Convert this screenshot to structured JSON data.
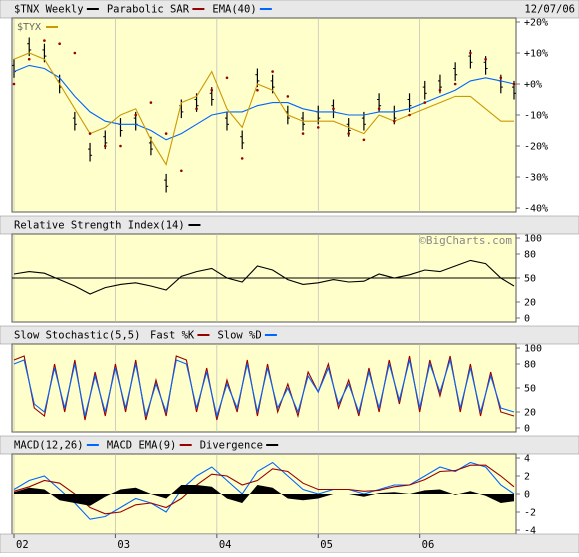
{
  "colors": {
    "panel_bg": "#ffffcc",
    "header_bg": "#e8e8e8",
    "price": "#000000",
    "sar": "#990000",
    "ema": "#0066ff",
    "tyx": "#cc9900",
    "fast_k": "#990000",
    "slow_d": "#0066ff",
    "macd": "#0066ff",
    "macd_ema": "#990000",
    "divergence": "#000000"
  },
  "chart_data": [
    {
      "type": "line",
      "id": "price",
      "legend": [
        "$TNX Weekly",
        "Parabolic SAR",
        "EMA(40)"
      ],
      "date_label": "12/07/06",
      "overlay_label": "$TYX",
      "watermark": "",
      "ylim": [
        -40,
        20
      ],
      "yticks": [
        "+20%",
        "+10%",
        "+0%",
        "-10%",
        "-20%",
        "-30%",
        "-40%"
      ],
      "ytick_values": [
        20,
        10,
        0,
        -10,
        -20,
        -30,
        -40
      ],
      "x": [
        2002.0,
        2002.15,
        2002.3,
        2002.45,
        2002.6,
        2002.75,
        2002.9,
        2003.05,
        2003.2,
        2003.35,
        2003.5,
        2003.65,
        2003.8,
        2003.95,
        2004.1,
        2004.25,
        2004.4,
        2004.55,
        2004.7,
        2004.85,
        2005.0,
        2005.15,
        2005.3,
        2005.45,
        2005.6,
        2005.75,
        2005.9,
        2006.05,
        2006.2,
        2006.35,
        2006.5,
        2006.65,
        2006.8,
        2006.93
      ],
      "series": [
        {
          "name": "$TNX Weekly",
          "values": [
            5,
            12,
            10,
            0,
            -12,
            -22,
            -18,
            -14,
            -12,
            -20,
            -32,
            -8,
            -6,
            -4,
            -12,
            -18,
            2,
            0,
            -10,
            -12,
            -10,
            -8,
            -14,
            -12,
            -6,
            -10,
            -6,
            -2,
            0,
            4,
            8,
            6,
            0,
            -2
          ]
        },
        {
          "name": "EMA(40)",
          "values": [
            4,
            6,
            5,
            2,
            -4,
            -9,
            -12,
            -13,
            -13,
            -15,
            -18,
            -16,
            -13,
            -10,
            -9,
            -9,
            -7,
            -6,
            -6,
            -8,
            -9,
            -9,
            -10,
            -10,
            -9,
            -9,
            -8,
            -6,
            -4,
            -2,
            1,
            2,
            1,
            0
          ]
        },
        {
          "name": "$TYX",
          "values": [
            8,
            10,
            8,
            0,
            -8,
            -16,
            -14,
            -10,
            -8,
            -18,
            -26,
            -6,
            -4,
            4,
            -8,
            -14,
            0,
            -2,
            -10,
            -12,
            -12,
            -12,
            -14,
            -16,
            -10,
            -12,
            -10,
            -8,
            -6,
            -4,
            -4,
            -8,
            -12,
            -12
          ]
        },
        {
          "name": "Parabolic SAR",
          "values": [
            0,
            8,
            14,
            13,
            10,
            -16,
            -20,
            -20,
            -10,
            -6,
            -16,
            -28,
            -8,
            -2,
            2,
            -24,
            -2,
            4,
            -4,
            -16,
            -14,
            -8,
            -16,
            -18,
            -8,
            -12,
            -10,
            -6,
            -2,
            0,
            10,
            8,
            2,
            0
          ]
        }
      ]
    },
    {
      "type": "line",
      "id": "rsi",
      "legend": [
        "Relative Strength Index(14)"
      ],
      "watermark": "©BigCharts.com",
      "ylim": [
        0,
        100
      ],
      "yticks": [
        "100",
        "80",
        "50",
        "20",
        "0"
      ],
      "ytick_values": [
        100,
        80,
        50,
        20,
        0
      ],
      "reference_line": 50,
      "x": [
        2002.0,
        2002.15,
        2002.3,
        2002.45,
        2002.6,
        2002.75,
        2002.9,
        2003.05,
        2003.2,
        2003.35,
        2003.5,
        2003.65,
        2003.8,
        2003.95,
        2004.1,
        2004.25,
        2004.4,
        2004.55,
        2004.7,
        2004.85,
        2005.0,
        2005.15,
        2005.3,
        2005.45,
        2005.6,
        2005.75,
        2005.9,
        2006.05,
        2006.2,
        2006.35,
        2006.5,
        2006.65,
        2006.8,
        2006.93
      ],
      "series": [
        {
          "name": "RSI(14)",
          "values": [
            55,
            58,
            56,
            48,
            40,
            30,
            38,
            42,
            44,
            40,
            35,
            52,
            58,
            62,
            50,
            45,
            65,
            60,
            48,
            42,
            44,
            48,
            45,
            46,
            55,
            50,
            54,
            60,
            58,
            65,
            72,
            68,
            50,
            40
          ]
        }
      ]
    },
    {
      "type": "line",
      "id": "stochastic",
      "legend": [
        "Slow Stochastic(5,5)",
        "Fast %K",
        "Slow %D"
      ],
      "ylim": [
        0,
        100
      ],
      "yticks": [
        "100",
        "80",
        "50",
        "20",
        "0"
      ],
      "ytick_values": [
        100,
        80,
        50,
        20,
        0
      ],
      "x": [
        2002.0,
        2002.1,
        2002.2,
        2002.3,
        2002.4,
        2002.5,
        2002.6,
        2002.7,
        2002.8,
        2002.9,
        2003.0,
        2003.1,
        2003.2,
        2003.3,
        2003.4,
        2003.5,
        2003.6,
        2003.7,
        2003.8,
        2003.9,
        2004.0,
        2004.1,
        2004.2,
        2004.3,
        2004.4,
        2004.5,
        2004.6,
        2004.7,
        2004.8,
        2004.9,
        2005.0,
        2005.1,
        2005.2,
        2005.3,
        2005.4,
        2005.5,
        2005.6,
        2005.7,
        2005.8,
        2005.9,
        2006.0,
        2006.1,
        2006.2,
        2006.3,
        2006.4,
        2006.5,
        2006.6,
        2006.7,
        2006.8,
        2006.93
      ],
      "series": [
        {
          "name": "Fast %K",
          "values": [
            85,
            90,
            25,
            15,
            80,
            20,
            85,
            10,
            70,
            15,
            80,
            20,
            85,
            10,
            60,
            15,
            90,
            85,
            20,
            75,
            10,
            60,
            20,
            85,
            15,
            80,
            20,
            55,
            15,
            70,
            45,
            80,
            25,
            60,
            15,
            75,
            20,
            85,
            30,
            90,
            20,
            85,
            40,
            90,
            20,
            80,
            15,
            70,
            20,
            15
          ]
        },
        {
          "name": "Slow %D",
          "values": [
            80,
            85,
            30,
            20,
            75,
            25,
            80,
            15,
            65,
            20,
            75,
            25,
            80,
            15,
            55,
            20,
            85,
            80,
            25,
            70,
            15,
            55,
            25,
            80,
            20,
            75,
            25,
            50,
            20,
            65,
            45,
            75,
            30,
            55,
            20,
            70,
            25,
            80,
            35,
            85,
            25,
            80,
            45,
            85,
            25,
            75,
            20,
            65,
            25,
            20
          ]
        }
      ]
    },
    {
      "type": "line",
      "id": "macd",
      "legend": [
        "MACD(12,26)",
        "MACD EMA(9)",
        "Divergence"
      ],
      "ylim": [
        -4,
        4
      ],
      "yticks": [
        "4",
        "2",
        "0",
        "-2",
        "-4"
      ],
      "ytick_values": [
        4,
        2,
        0,
        -2,
        -4
      ],
      "x": [
        2002.0,
        2002.15,
        2002.3,
        2002.45,
        2002.6,
        2002.75,
        2002.9,
        2003.05,
        2003.2,
        2003.35,
        2003.5,
        2003.65,
        2003.8,
        2003.95,
        2004.1,
        2004.25,
        2004.4,
        2004.55,
        2004.7,
        2004.85,
        2005.0,
        2005.15,
        2005.3,
        2005.45,
        2005.6,
        2005.75,
        2005.9,
        2006.05,
        2006.2,
        2006.35,
        2006.5,
        2006.65,
        2006.8,
        2006.93
      ],
      "series": [
        {
          "name": "MACD(12,26)",
          "values": [
            0.5,
            1.5,
            2.0,
            0.5,
            -1.0,
            -2.8,
            -2.5,
            -1.5,
            -0.5,
            -1.0,
            -2.0,
            0.5,
            2.0,
            3.0,
            1.5,
            0.0,
            2.5,
            3.5,
            2.0,
            0.5,
            0.0,
            0.5,
            0.5,
            0.0,
            0.5,
            1.0,
            1.0,
            2.0,
            3.0,
            2.5,
            3.5,
            3.0,
            1.0,
            0.0
          ]
        },
        {
          "name": "MACD EMA(9)",
          "values": [
            0.3,
            0.8,
            1.5,
            1.2,
            0.0,
            -1.5,
            -2.2,
            -2.0,
            -1.2,
            -1.0,
            -1.5,
            -0.5,
            1.0,
            2.2,
            2.0,
            1.0,
            1.5,
            2.8,
            2.5,
            1.2,
            0.5,
            0.5,
            0.5,
            0.3,
            0.4,
            0.8,
            1.0,
            1.6,
            2.5,
            2.6,
            3.2,
            3.2,
            2.0,
            0.8
          ]
        },
        {
          "name": "Divergence",
          "values": [
            0.2,
            0.7,
            0.5,
            -0.7,
            -1.0,
            -1.3,
            -0.3,
            0.5,
            0.7,
            0.0,
            -0.5,
            1.0,
            1.0,
            0.8,
            -0.5,
            -1.0,
            1.0,
            0.7,
            -0.5,
            -0.7,
            -0.5,
            0.0,
            0.0,
            -0.3,
            0.1,
            0.2,
            0.0,
            0.4,
            0.5,
            -0.1,
            0.3,
            -0.2,
            -1.0,
            -0.8
          ]
        }
      ]
    }
  ],
  "x_axis": {
    "xlim": [
      2002.0,
      2006.93
    ],
    "ticks": [
      2002.0,
      2003.0,
      2004.0,
      2005.0,
      2006.0
    ],
    "labels": [
      "02",
      "03",
      "04",
      "05",
      "06"
    ]
  }
}
